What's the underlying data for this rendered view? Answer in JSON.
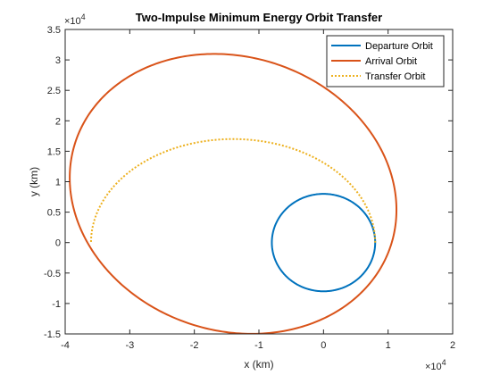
{
  "chart_data": {
    "type": "line",
    "title": "Two-Impulse Minimum Energy Orbit Transfer",
    "xlabel": "x (km)",
    "ylabel": "y (km)",
    "x_exponent_label": "×10",
    "x_exponent_power": "4",
    "y_exponent_label": "×10",
    "y_exponent_power": "4",
    "xlim": [
      -40000,
      20000
    ],
    "ylim": [
      -15000,
      35000
    ],
    "xticks": [
      -40000,
      -30000,
      -20000,
      -10000,
      0,
      10000,
      20000
    ],
    "xtick_labels": [
      "-4",
      "-3",
      "-2",
      "-1",
      "0",
      "1",
      "2"
    ],
    "yticks": [
      -15000,
      -10000,
      -5000,
      0,
      5000,
      10000,
      15000,
      20000,
      25000,
      30000,
      35000
    ],
    "ytick_labels": [
      "-1.5",
      "-1",
      "-0.5",
      "0",
      "0.5",
      "1",
      "1.5",
      "2",
      "2.5",
      "3",
      "3.5"
    ],
    "grid": false,
    "legend_position": "top-right",
    "series": [
      {
        "name": "Departure Orbit",
        "color": "#0072BD",
        "style": "solid",
        "center": [
          0,
          0
        ],
        "semi_axes": [
          8000,
          8000
        ],
        "rotation_deg": 0,
        "arc_deg": [
          0,
          360
        ]
      },
      {
        "name": "Arrival Orbit",
        "color": "#D95319",
        "style": "solid",
        "center": [
          -14000,
          8000
        ],
        "semi_axes": [
          25900,
          22300
        ],
        "rotation_deg": -25,
        "arc_deg": [
          0,
          360
        ]
      },
      {
        "name": "Transfer Orbit",
        "color": "#EDB120",
        "style": "dotted",
        "center": [
          -14000,
          0
        ],
        "semi_axes": [
          22000,
          17000
        ],
        "rotation_deg": 0,
        "arc_deg": [
          0,
          180
        ]
      }
    ]
  }
}
